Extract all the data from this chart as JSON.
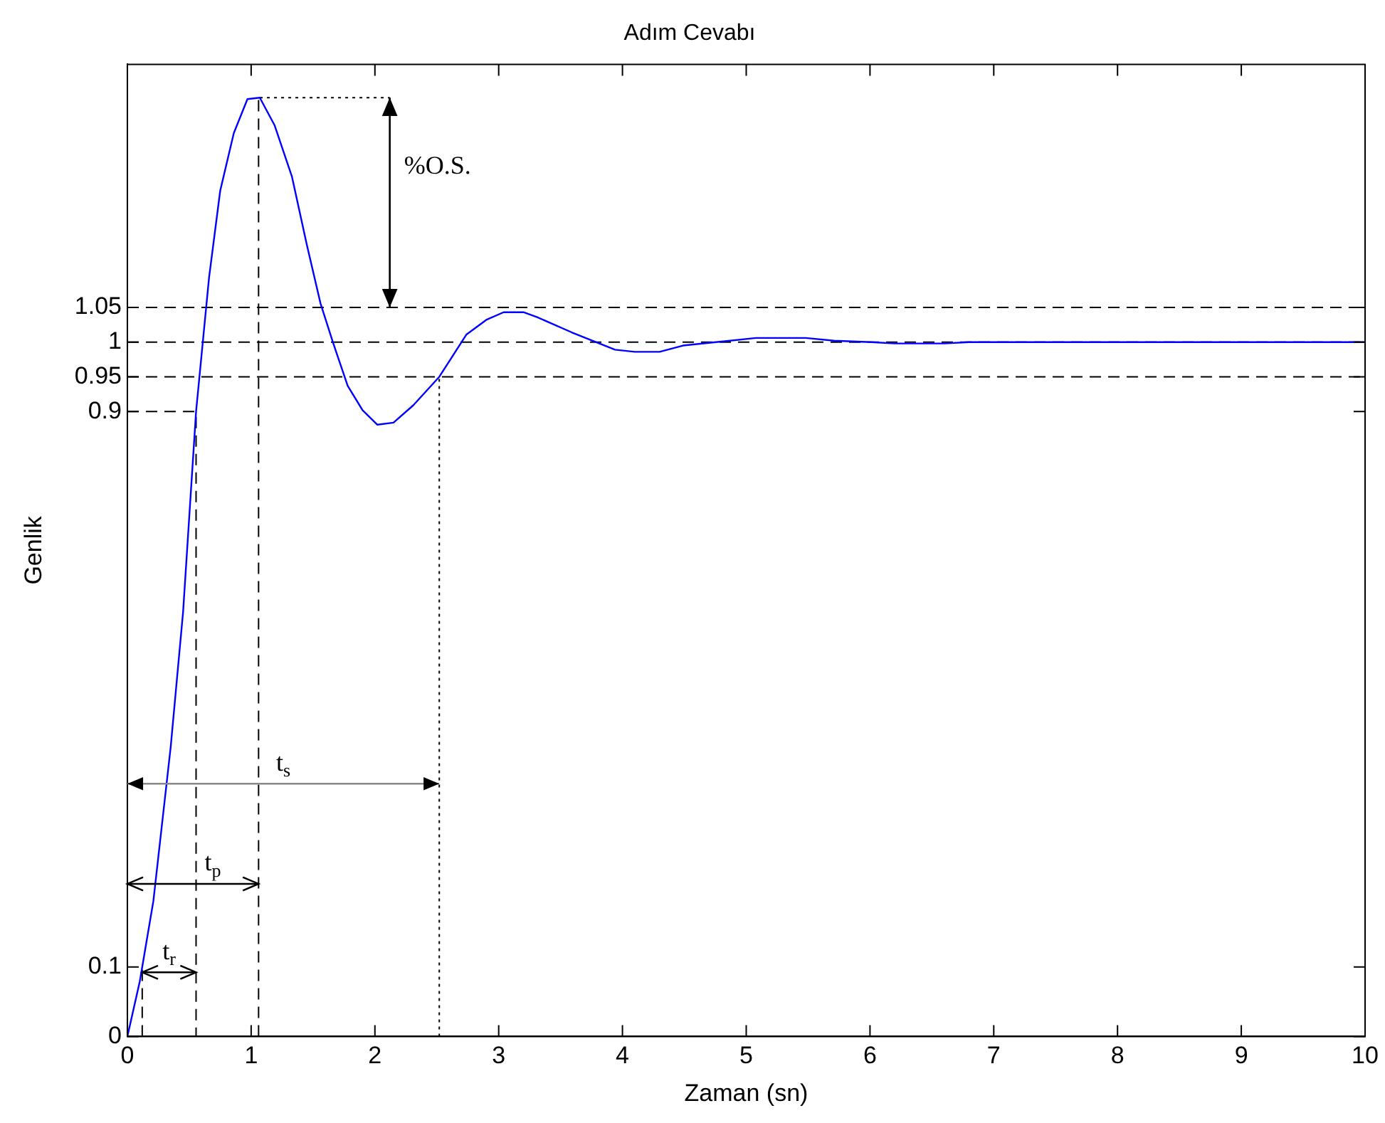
{
  "chart_data": {
    "type": "line",
    "title": "Adım Cevabı",
    "xlabel": "Zaman (sn)",
    "ylabel": "Genlik",
    "xlim": [
      0,
      10
    ],
    "xticks": [
      0,
      1,
      2,
      3,
      4,
      5,
      6,
      7,
      8,
      9,
      10
    ],
    "ylim": [
      0,
      1.4
    ],
    "yticks": [
      0,
      0.1,
      0.9,
      0.95,
      1,
      1.05
    ],
    "grid": false,
    "legend": false,
    "marker": "none",
    "line_style": "solid",
    "series": [
      {
        "color": "#0000ff",
        "x": [
          0,
          0.1,
          0.21,
          0.35,
          0.45,
          0.555,
          0.66,
          0.75,
          0.86,
          0.97,
          1.07,
          1.19,
          1.33,
          1.45,
          1.56,
          1.66,
          1.78,
          1.9,
          2.02,
          2.15,
          2.31,
          2.52,
          2.74,
          2.9,
          3.04,
          3.2,
          3.31,
          3.59,
          3.94,
          4.1,
          4.3,
          4.49,
          5.08,
          5.48,
          5.71,
          6.01,
          6.2,
          6.6,
          6.8,
          10
        ],
        "values": [
          0,
          0.079,
          0.195,
          0.417,
          0.611,
          0.9,
          1.093,
          1.218,
          1.301,
          1.35,
          1.352,
          1.312,
          1.238,
          1.14,
          1.056,
          1.0,
          0.937,
          0.902,
          0.881,
          0.884,
          0.909,
          0.95,
          1.011,
          1.032,
          1.043,
          1.043,
          1.036,
          1.014,
          0.989,
          0.986,
          0.986,
          0.995,
          1.006,
          1.006,
          1.002,
          1.0,
          0.998,
          0.998,
          1.0,
          1.0
        ]
      },
      {
        "type": "line",
        "color": "#000000",
        "line_style": "dashed",
        "x": [
          0.12,
          0.12
        ],
        "values": [
          0,
          0.1
        ]
      },
      {
        "type": "line",
        "color": "#000000",
        "line_style": "dashed",
        "x": [
          0,
          0.555,
          0.555
        ],
        "values": [
          0.9,
          0.9,
          0
        ]
      },
      {
        "type": "line",
        "color": "#000000",
        "line_style": "dashed",
        "x": [
          1.06,
          1.06
        ],
        "values": [
          0,
          1.352
        ]
      },
      {
        "type": "line",
        "color": "#000000",
        "line_style": "dotted",
        "x": [
          2.52,
          2.52
        ],
        "values": [
          0,
          0.95
        ]
      },
      {
        "type": "line",
        "color": "#000000",
        "line_style": "dotted",
        "x": [
          1.07,
          2.12
        ],
        "values": [
          1.352,
          1.352
        ]
      }
    ],
    "ref_lines": [
      {
        "axis": "y",
        "value": 1.05,
        "line_style": "dashed",
        "color": "#000000"
      },
      {
        "axis": "y",
        "value": 1,
        "line_style": "dashed",
        "color": "#000000"
      },
      {
        "axis": "y",
        "value": 0.95,
        "line_style": "dashed",
        "color": "#000000"
      }
    ],
    "annotations": [
      "t$_{r}$",
      "t$_{p}$",
      "t$_{s}$",
      "%O.S."
    ]
  }
}
